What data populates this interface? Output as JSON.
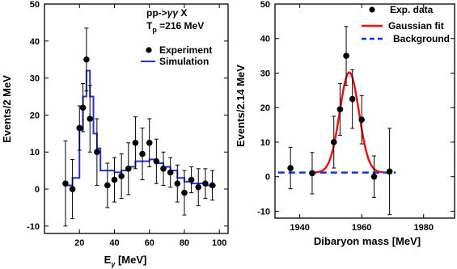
{
  "chart_data": [
    {
      "type": "scatter",
      "xlabel": "E_γ [MeV]",
      "xlabel_base": "E",
      "xlabel_sub": "γ",
      "xlabel_rest": " [MeV]",
      "ylabel": "Events/2 MeV",
      "xlim": [
        0,
        105
      ],
      "ylim": [
        -12,
        50
      ],
      "xticks": [
        20,
        40,
        60,
        80,
        100
      ],
      "yticks": [
        -10,
        0,
        10,
        20,
        30,
        40,
        50
      ],
      "annotation": {
        "line1_base": "pp->",
        "line1_italic": "γγ",
        "line1_rest": " X",
        "line2_base": "T",
        "line2_sub": "p",
        "line2_rest": " =216 MeV"
      },
      "legend": {
        "position": "right",
        "entries": [
          {
            "label": "Experiment",
            "marker": "dot",
            "color": "#000000"
          },
          {
            "label": "Simulation",
            "marker": "line",
            "color": "#2233cc"
          }
        ]
      },
      "series": [
        {
          "name": "Experiment",
          "points": [
            {
              "x": 12,
              "y": 1.5,
              "err": 11.5
            },
            {
              "x": 16,
              "y": 0,
              "err": 8
            },
            {
              "x": 20,
              "y": 16.5,
              "err": 6
            },
            {
              "x": 22,
              "y": 22,
              "err": 6.5
            },
            {
              "x": 24,
              "y": 35,
              "err": 8.5
            },
            {
              "x": 26,
              "y": 19,
              "err": 9
            },
            {
              "x": 30,
              "y": 10,
              "err": 9
            },
            {
              "x": 36,
              "y": 1,
              "err": 6
            },
            {
              "x": 40,
              "y": 2.5,
              "err": 6
            },
            {
              "x": 44,
              "y": 3.5,
              "err": 6
            },
            {
              "x": 48,
              "y": 5.5,
              "err": 7
            },
            {
              "x": 52,
              "y": 12.5,
              "err": 7
            },
            {
              "x": 56,
              "y": 9.5,
              "err": 7
            },
            {
              "x": 60,
              "y": 12.5,
              "err": 6.5
            },
            {
              "x": 64,
              "y": 7.5,
              "err": 6
            },
            {
              "x": 68,
              "y": 5.5,
              "err": 4.5
            },
            {
              "x": 72,
              "y": 4.5,
              "err": 4
            },
            {
              "x": 76,
              "y": 1.5,
              "err": 5
            },
            {
              "x": 80,
              "y": -1,
              "err": 6
            },
            {
              "x": 84,
              "y": 2.5,
              "err": 3.5
            },
            {
              "x": 88,
              "y": 0.5,
              "err": 5
            },
            {
              "x": 92,
              "y": 1.5,
              "err": 4
            },
            {
              "x": 96,
              "y": 1,
              "err": 4
            }
          ]
        },
        {
          "name": "Simulation",
          "type": "step",
          "color": "#2233cc",
          "edges": [
            12,
            16,
            20,
            22,
            24,
            26,
            28,
            30,
            32,
            36,
            40,
            44,
            48,
            52,
            56,
            60,
            64,
            68,
            72,
            76,
            80,
            84,
            88,
            92,
            96,
            98
          ],
          "values": [
            1,
            3,
            16,
            25,
            32,
            25,
            15,
            11,
            5,
            5,
            4.5,
            5,
            6,
            7.5,
            7.5,
            8,
            7,
            6,
            5,
            3,
            2,
            1.5,
            1.5,
            1,
            1
          ]
        }
      ]
    },
    {
      "type": "scatter",
      "xlabel": "Dibaryon mass [MeV]",
      "ylabel": "Events/2.14 MeV",
      "xlim": [
        1932,
        1990
      ],
      "ylim": [
        -12,
        50
      ],
      "xticks": [
        1940,
        1960,
        1980
      ],
      "yticks": [
        -10,
        0,
        10,
        20,
        30,
        40,
        50
      ],
      "legend": {
        "position": "top-right",
        "entries": [
          {
            "label": "Exp. data",
            "marker": "dot",
            "color": "#000000"
          },
          {
            "label": "Gaussian fit",
            "marker": "line",
            "color": "#ee1111"
          },
          {
            "label": "Background",
            "marker": "dashed",
            "color": "#1133dd"
          }
        ]
      },
      "series": [
        {
          "name": "Exp. data",
          "points": [
            {
              "x": 1937,
              "y": 2.5,
              "err": 6
            },
            {
              "x": 1944,
              "y": 1,
              "err": 6
            },
            {
              "x": 1951,
              "y": 10,
              "err": 7.5
            },
            {
              "x": 1953,
              "y": 19.5,
              "err": 7.5
            },
            {
              "x": 1955,
              "y": 35,
              "err": 8.5
            },
            {
              "x": 1957,
              "y": 22.5,
              "err": 8.5
            },
            {
              "x": 1960,
              "y": 16.5,
              "err": 7
            },
            {
              "x": 1964,
              "y": 0,
              "err": 6
            },
            {
              "x": 1969,
              "y": 1.5,
              "err": 12.5
            }
          ]
        },
        {
          "name": "Gaussian fit",
          "type": "gaussian",
          "color": "#ee1111",
          "amplitude": 29,
          "mean": 1956,
          "sigma": 3.1,
          "baseline": 1.2,
          "range": [
            1945,
            1967
          ]
        },
        {
          "name": "Background",
          "type": "hline",
          "color": "#1133dd",
          "y": 1.2,
          "range": [
            1933,
            1971
          ]
        }
      ]
    }
  ]
}
